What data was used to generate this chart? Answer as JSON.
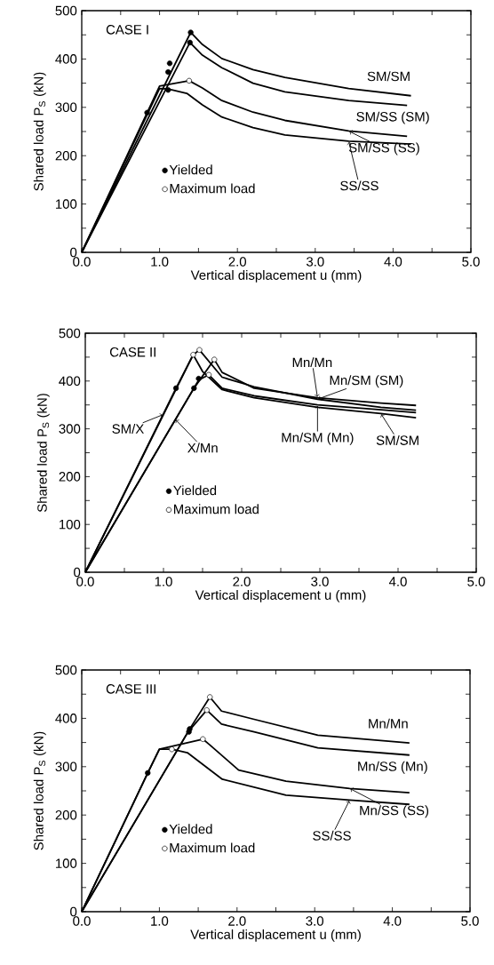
{
  "chart_data": [
    {
      "type": "line",
      "title": "CASE I",
      "xlabel": "Vertical displacement   u (mm)",
      "ylabel": "Shared load   P$_{S}$ (kN)",
      "xlim": [
        0,
        5
      ],
      "ylim": [
        0,
        500
      ],
      "xticks": [
        {
          "value": 0,
          "label": "0.0"
        },
        {
          "value": 0.5,
          "label": null
        },
        {
          "value": 1,
          "label": "1.0"
        },
        {
          "value": 1.5,
          "label": null
        },
        {
          "value": 2,
          "label": "2.0"
        },
        {
          "value": 2.5,
          "label": null
        },
        {
          "value": 3,
          "label": "3.0"
        },
        {
          "value": 3.5,
          "label": null
        },
        {
          "value": 4,
          "label": "4.0"
        },
        {
          "value": 4.5,
          "label": null
        },
        {
          "value": 5,
          "label": "5.0"
        }
      ],
      "yticks": [
        0,
        {
          "value": 50,
          "label": null
        },
        100,
        {
          "value": 150,
          "label": null
        },
        200,
        {
          "value": 250,
          "label": null
        },
        300,
        {
          "value": 350,
          "label": null
        },
        400,
        {
          "value": 450,
          "label": null
        },
        500
      ],
      "legend": "center left",
      "series": [
        {
          "name": "SM/SM",
          "color": "#000000",
          "x": [
            0,
            1.4,
            1.55,
            1.8,
            2.2,
            2.61,
            3.43,
            4.23
          ],
          "values": [
            0,
            455,
            430,
            401,
            378,
            362,
            339,
            324
          ]
        },
        {
          "name": "SM/SS (SM)",
          "color": "#000000",
          "x": [
            0,
            1.39,
            1.55,
            1.8,
            2.2,
            2.61,
            3.43,
            4.18
          ],
          "values": [
            0,
            434,
            408,
            382,
            350,
            332,
            314,
            304
          ]
        },
        {
          "name": "SM/SS (SS)",
          "color": "#000000",
          "x": [
            0,
            1.0,
            1.38,
            1.55,
            1.8,
            2.2,
            2.61,
            3.43,
            4.18
          ],
          "values": [
            0,
            344,
            355,
            340,
            314,
            290,
            273,
            251,
            240
          ]
        },
        {
          "name": "SS/SS",
          "color": "#000000",
          "x": [
            0,
            1.0,
            1.11,
            1.35,
            1.55,
            1.8,
            2.2,
            2.61,
            3.43,
            4.23
          ],
          "values": [
            0,
            339,
            338,
            329,
            305,
            280,
            258,
            243,
            230,
            224
          ]
        },
        {
          "type": "scatter",
          "name": "Yielded",
          "color": "#000000",
          "marker": "circle",
          "x": [
            0.84,
            1.11,
            1.11,
            1.13,
            1.39,
            1.4
          ],
          "values": [
            289,
            336,
            373,
            391,
            434,
            455
          ]
        },
        {
          "type": "scatter",
          "name": "Maximum load",
          "color": "#ffffff",
          "marker": "circle",
          "x": [
            1.38
          ],
          "values": [
            355
          ]
        }
      ]
    },
    {
      "type": "line",
      "title": "CASE II",
      "xlabel": "Vertical displacement   u (mm)",
      "ylabel": "Shared load   P$_{S}$ (kN)",
      "xlim": [
        0,
        5
      ],
      "ylim": [
        0,
        500
      ],
      "xticks": [
        {
          "value": 0,
          "label": "0.0"
        },
        {
          "value": 0.5,
          "label": null
        },
        {
          "value": 1,
          "label": "1.0"
        },
        {
          "value": 1.5,
          "label": null
        },
        {
          "value": 2,
          "label": "2.0"
        },
        {
          "value": 2.5,
          "label": null
        },
        {
          "value": 3,
          "label": "3.0"
        },
        {
          "value": 3.5,
          "label": null
        },
        {
          "value": 4,
          "label": "4.0"
        },
        {
          "value": 4.5,
          "label": null
        },
        {
          "value": 5,
          "label": "5.0"
        }
      ],
      "yticks": [
        0,
        {
          "value": 50,
          "label": null
        },
        100,
        {
          "value": 150,
          "label": null
        },
        200,
        {
          "value": 250,
          "label": null
        },
        300,
        {
          "value": 350,
          "label": null
        },
        400,
        {
          "value": 450,
          "label": null
        },
        500
      ],
      "legend": "center left",
      "annotations": [
        {
          "text": "SM/X",
          "x": 1.0,
          "y": 330
        },
        {
          "text": "X/Mn",
          "x": 1.15,
          "y": 320
        }
      ],
      "series": [
        {
          "name": "Mn/Mn",
          "color": "#000000",
          "x": [
            0,
            1.39,
            1.65,
            1.75,
            2.16,
            2.97,
            3.78,
            4.23
          ],
          "values": [
            0,
            385,
            445,
            418,
            385,
            365,
            354,
            349
          ]
        },
        {
          "name": "Mn/SM (SM)",
          "color": "#000000",
          "x": [
            0,
            1.38,
            1.46,
            1.75,
            2.16,
            2.97,
            3.78,
            4.23
          ],
          "values": [
            0,
            455,
            465,
            408,
            388,
            362,
            345,
            339
          ]
        },
        {
          "name": "Mn/SM (Mn)",
          "color": "#000000",
          "x": [
            0,
            1.45,
            1.58,
            1.75,
            2.16,
            2.97,
            3.78,
            4.23
          ],
          "values": [
            0,
            402,
            413,
            385,
            369,
            350,
            340,
            334
          ]
        },
        {
          "name": "SM/SM",
          "color": "#000000",
          "x": [
            0,
            1.16,
            1.38,
            1.5,
            1.75,
            2.16,
            2.97,
            3.78,
            4.23
          ],
          "values": [
            0,
            385,
            455,
            420,
            382,
            365,
            345,
            332,
            323
          ]
        },
        {
          "type": "scatter",
          "name": "Yielded",
          "color": "#000000",
          "marker": "circle",
          "x": [
            1.16,
            1.39,
            1.45
          ],
          "values": [
            385,
            385,
            405
          ]
        },
        {
          "type": "scatter",
          "name": "Maximum load",
          "color": "#ffffff",
          "marker": "circle",
          "x": [
            1.38,
            1.46,
            1.65,
            1.58
          ],
          "values": [
            455,
            465,
            445,
            413
          ]
        }
      ]
    },
    {
      "type": "line",
      "title": "CASE III",
      "xlabel": "Vertical displacement   u (mm)",
      "ylabel": "Shared load   P$_{S}$ (kN)",
      "xlim": [
        0,
        5
      ],
      "ylim": [
        0,
        500
      ],
      "xticks": [
        {
          "value": 0,
          "label": "0.0"
        },
        {
          "value": 0.5,
          "label": null
        },
        {
          "value": 1,
          "label": "1.0"
        },
        {
          "value": 1.5,
          "label": null
        },
        {
          "value": 2,
          "label": "2.0"
        },
        {
          "value": 2.5,
          "label": null
        },
        {
          "value": 3,
          "label": "3.0"
        },
        {
          "value": 3.5,
          "label": null
        },
        {
          "value": 4,
          "label": "4.0"
        },
        {
          "value": 4.5,
          "label": null
        },
        {
          "value": 5,
          "label": "5.0"
        }
      ],
      "yticks": [
        0,
        {
          "value": 50,
          "label": null
        },
        100,
        {
          "value": 150,
          "label": null
        },
        200,
        {
          "value": 250,
          "label": null
        },
        300,
        {
          "value": 350,
          "label": null
        },
        400,
        {
          "value": 450,
          "label": null
        },
        500
      ],
      "legend": "center left",
      "series": [
        {
          "name": "Mn/Mn",
          "color": "#000000",
          "x": [
            0,
            1.39,
            1.65,
            1.8,
            2.22,
            3.04,
            4.22
          ],
          "values": [
            0,
            378,
            444,
            415,
            398,
            365,
            349
          ]
        },
        {
          "name": "Mn/SS (Mn)",
          "color": "#000000",
          "x": [
            0,
            1.37,
            1.61,
            1.8,
            2.22,
            3.04,
            4.22
          ],
          "values": [
            0,
            372,
            417,
            388,
            372,
            339,
            324
          ]
        },
        {
          "name": "Mn/SS (SS)",
          "color": "#000000",
          "x": [
            0,
            0.85,
            1.0,
            1.56,
            1.65,
            2.02,
            2.63,
            3.45,
            4.22
          ],
          "values": [
            0,
            287,
            336,
            357,
            345,
            293,
            270,
            255,
            246
          ]
        },
        {
          "name": "SS/SS",
          "color": "#000000",
          "x": [
            0,
            0.85,
            1.0,
            1.16,
            1.36,
            1.81,
            2.63,
            3.45,
            4.22
          ],
          "values": [
            0,
            287,
            336,
            336,
            329,
            274,
            241,
            231,
            222
          ]
        },
        {
          "type": "scatter",
          "name": "Yielded",
          "color": "#000000",
          "marker": "circle",
          "x": [
            0.85,
            1.38,
            1.39
          ],
          "values": [
            287,
            372,
            378
          ]
        },
        {
          "type": "scatter",
          "name": "Maximum load",
          "color": "#ffffff",
          "marker": "circle",
          "x": [
            1.16,
            1.56,
            1.61,
            1.65
          ],
          "values": [
            336,
            357,
            417,
            444
          ]
        }
      ]
    }
  ]
}
